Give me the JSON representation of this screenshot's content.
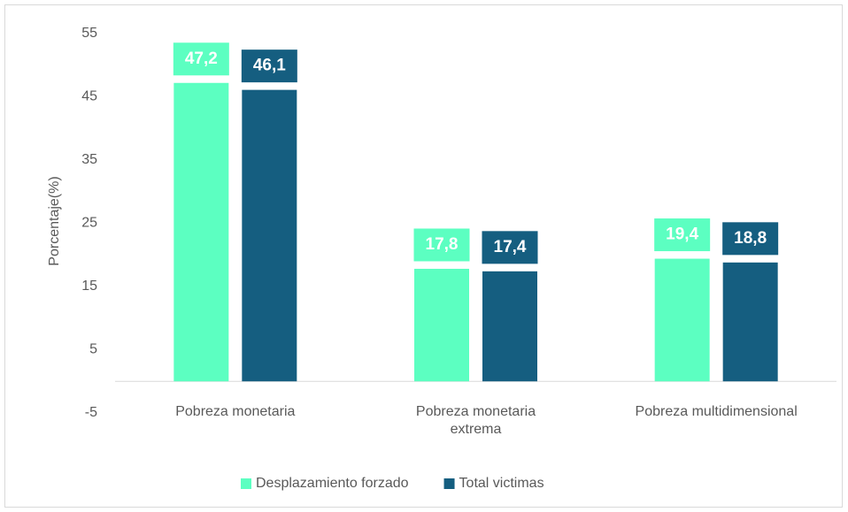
{
  "chart_data": {
    "type": "bar",
    "y_label": "Porcentaje(%)",
    "categories": [
      "Pobreza monetaria",
      "Pobreza monetaria extrema",
      "Pobreza multidimensional"
    ],
    "series": [
      {
        "name": "Desplazamiento forzado",
        "color": "#5cffc1",
        "values": [
          47.2,
          17.8,
          19.4
        ],
        "value_labels": [
          "47,2",
          "17,8",
          "19,4"
        ]
      },
      {
        "name": "Total victimas",
        "color": "#155e80",
        "values": [
          46.1,
          17.4,
          18.8
        ],
        "value_labels": [
          "46,1",
          "17,4",
          "18,8"
        ]
      }
    ],
    "ylim": [
      -5,
      55
    ],
    "yticks": [
      -5,
      5,
      15,
      25,
      35,
      45,
      55
    ],
    "legend": "bottom"
  }
}
